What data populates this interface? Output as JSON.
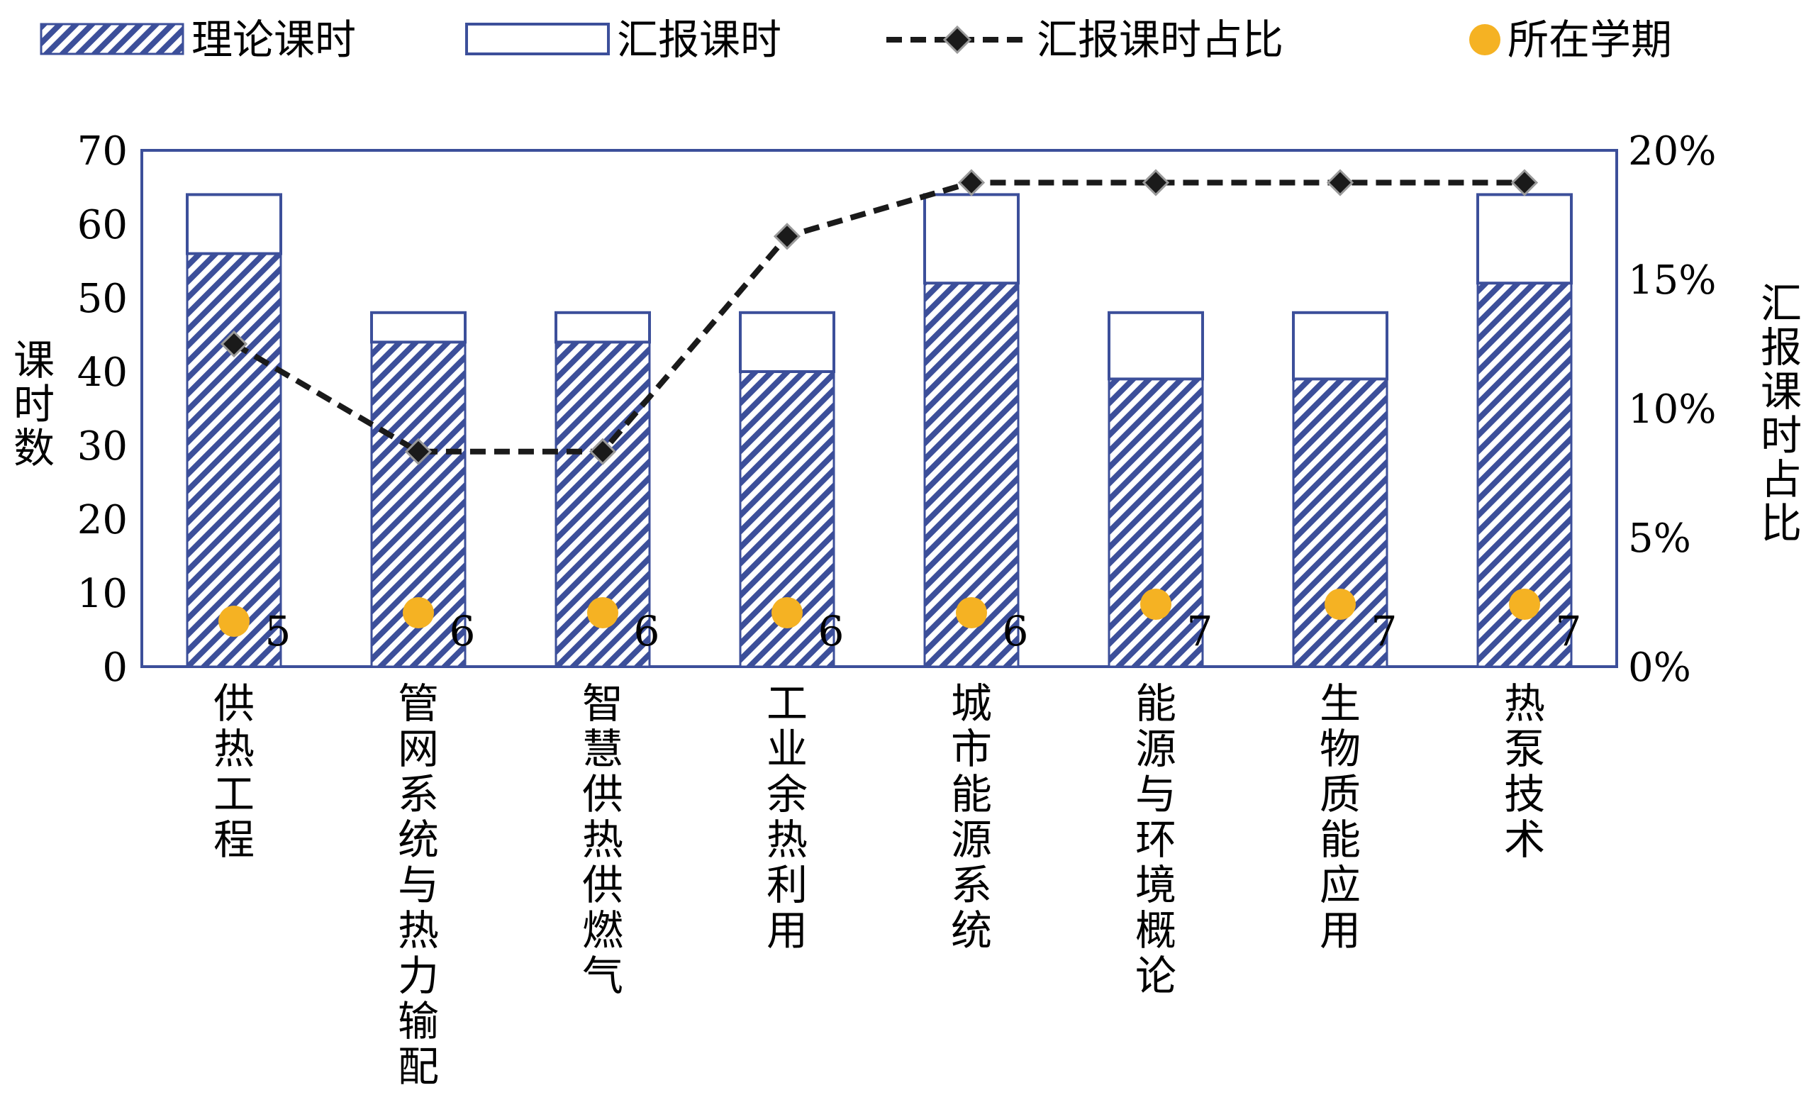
{
  "chart_data": {
    "type": "bar",
    "stacked": true,
    "categories": [
      "供热工程",
      "管网系统与热力输配",
      "智慧供热供燃气",
      "工业余热利用",
      "城市能源系统",
      "能源与环境概论",
      "生物质能应用",
      "热泵技术"
    ],
    "series": [
      {
        "name": "理论课时",
        "type": "bar",
        "axis": "left",
        "pattern": "diagonal-hatch",
        "color": "#3c4f9a",
        "values": [
          56,
          44,
          44,
          40,
          52,
          39,
          39,
          52
        ]
      },
      {
        "name": "汇报课时",
        "type": "bar",
        "axis": "left",
        "pattern": "none",
        "color": "#3c4f9a",
        "values": [
          8,
          4,
          4,
          8,
          12,
          9,
          9,
          12
        ]
      },
      {
        "name": "汇报课时占比",
        "type": "line",
        "axis": "right",
        "style": "dashed",
        "marker": "diamond",
        "color": "#1a1a1a",
        "values": [
          12.5,
          8.33,
          8.33,
          16.67,
          18.75,
          18.75,
          18.75,
          18.75
        ]
      },
      {
        "name": "所在学期",
        "type": "scatter",
        "marker": "circle",
        "color": "#f5b223",
        "values": [
          5,
          6,
          6,
          6,
          6,
          7,
          7,
          7
        ]
      }
    ],
    "ylabel": "课时数",
    "ylabel_right": "汇报课时占比",
    "ylim": [
      0,
      70
    ],
    "yticks": [
      "0",
      "10",
      "20",
      "30",
      "40",
      "50",
      "60",
      "70"
    ],
    "ylim_right": [
      0,
      20
    ],
    "yticks_right": [
      "0%",
      "5%",
      "10%",
      "15%",
      "20%"
    ],
    "legend_position": "top",
    "grid": false
  }
}
